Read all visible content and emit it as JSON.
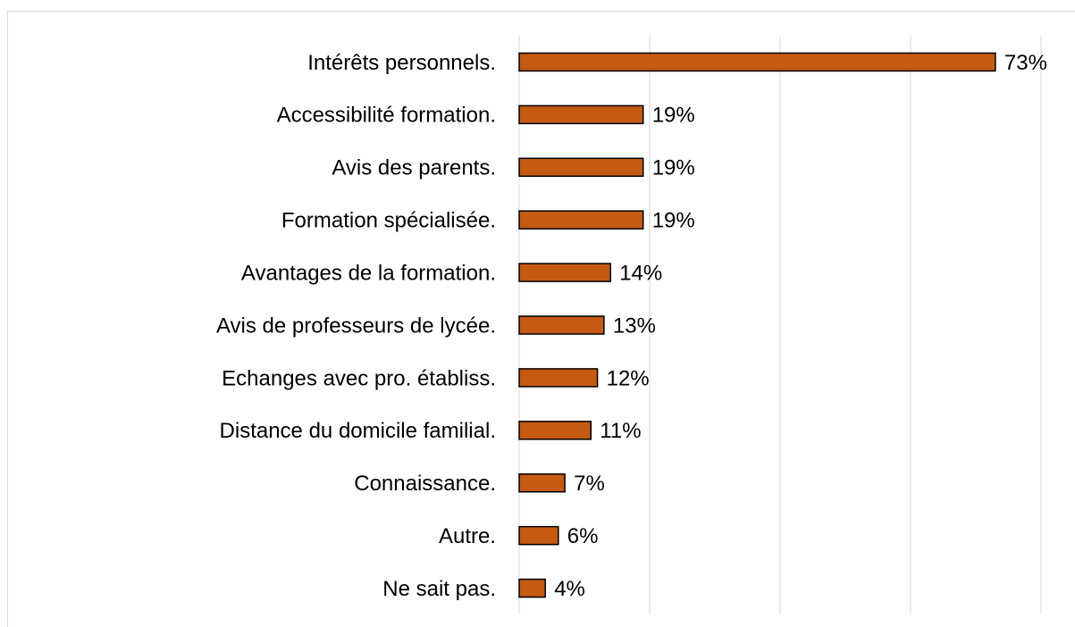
{
  "chart_data": {
    "type": "barh",
    "categories": [
      "Intérêts personnels.",
      "Accessibilité formation.",
      "Avis des parents.",
      "Formation spécialisée.",
      "Avantages de la formation.",
      "Avis de professeurs de lycée.",
      "Echanges avec pro. établiss.",
      "Distance du domicile familial.",
      "Connaissance.",
      "Autre.",
      "Ne sait pas."
    ],
    "values": [
      73,
      19,
      19,
      19,
      14,
      13,
      12,
      11,
      7,
      6,
      4
    ],
    "value_labels": [
      "73%",
      "19%",
      "19%",
      "19%",
      "14%",
      "13%",
      "12%",
      "11%",
      "7%",
      "6%",
      "4%"
    ],
    "color": "#c55a11",
    "xlim": [
      0,
      80
    ],
    "xticks": [
      0,
      20,
      40,
      60,
      80
    ],
    "grid": true
  }
}
